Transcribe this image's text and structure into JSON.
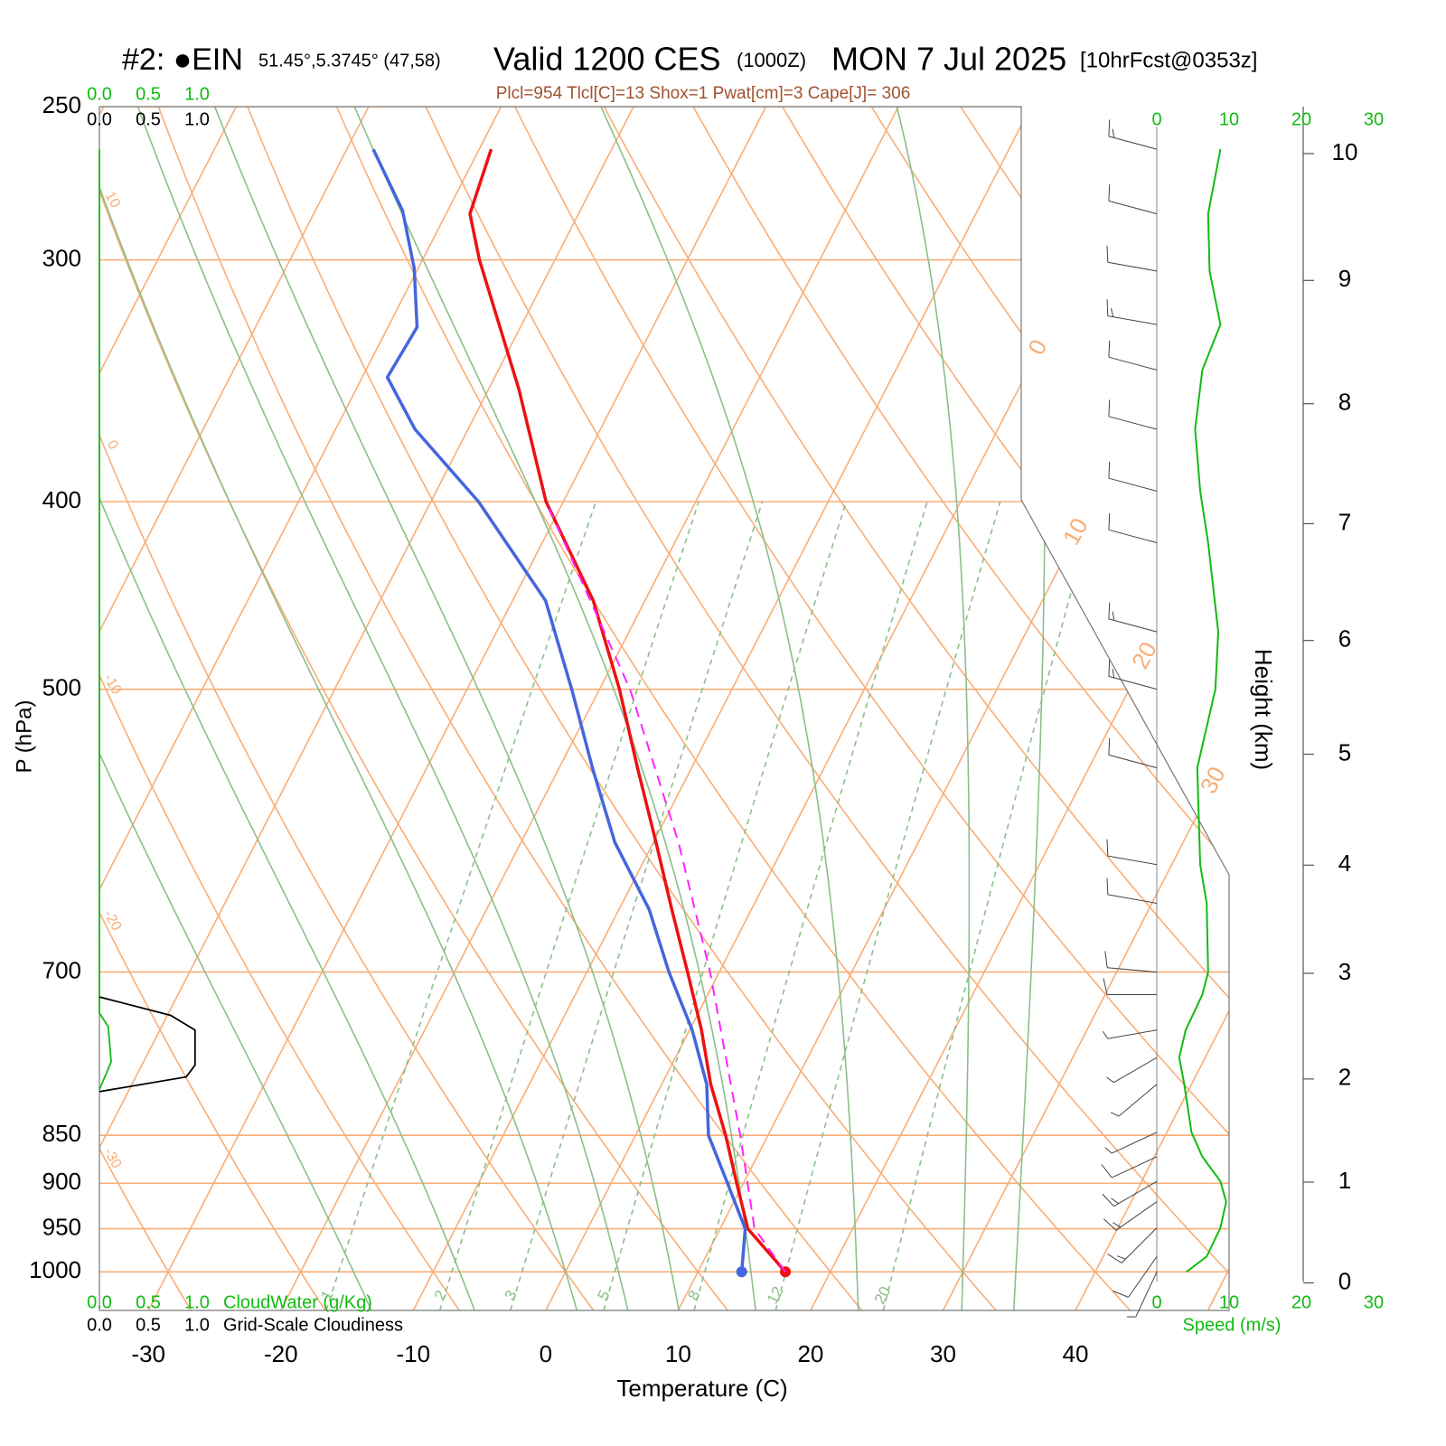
{
  "chart_data": {
    "type": "skewt",
    "title": {
      "station": "#2: ●EIN",
      "location": "51.45°,5.3745° (47,58)",
      "valid": "Valid 1200 CES",
      "utc": "(1000Z)",
      "date": "MON 7 Jul 2025",
      "forecast": "[10hrFcst@0353z]"
    },
    "subtitle": "Plcl=954 Tlcl[C]=13 Shox=1 Pwat[cm]=3 Cape[J]= 306",
    "xlabel": "Temperature (C)",
    "ylabel": "P (hPa)",
    "y2label": "Height (km)",
    "xlim": [
      -33.7,
      51.6
    ],
    "xticks": [
      -30,
      -20,
      -10,
      0,
      10,
      20,
      30,
      40
    ],
    "ylim": [
      1047,
      250
    ],
    "yticks": [
      250,
      300,
      400,
      500,
      700,
      850,
      900,
      950,
      1000
    ],
    "log_y": true,
    "y2ticks": [
      0,
      1,
      2,
      3,
      4,
      5,
      6,
      7,
      8,
      9,
      10
    ],
    "series": [
      {
        "color": "#ee1111",
        "dash": false,
        "marker": true,
        "pressure": [
          1000,
          950,
          900,
          850,
          800,
          750,
          700,
          650,
          600,
          550,
          500,
          450,
          400,
          350,
          300,
          284,
          263
        ],
        "values": [
          16.6,
          12.1,
          9.5,
          6.8,
          3.7,
          0.9,
          -2.4,
          -6.0,
          -9.8,
          -14.0,
          -18.5,
          -23.9,
          -31.3,
          -37.7,
          -45.7,
          -48.2,
          -49.1
        ]
      },
      {
        "color": "#4466dd",
        "dash": false,
        "marker": true,
        "pressure": [
          1000,
          950,
          900,
          850,
          800,
          750,
          700,
          650,
          600,
          550,
          500,
          450,
          400,
          367,
          345,
          325,
          303,
          283,
          263
        ],
        "values": [
          13.3,
          11.9,
          8.8,
          5.5,
          3.4,
          0.2,
          -3.8,
          -7.7,
          -12.9,
          -17.4,
          -22.1,
          -27.5,
          -36.4,
          -44.0,
          -48.1,
          -47.8,
          -50.3,
          -53.4,
          -58.0
        ]
      },
      {
        "color": "#ff22ff",
        "dash": true,
        "marker": false,
        "pressure": [
          1000,
          950,
          850,
          700,
          600,
          500,
          400
        ],
        "values": [
          16.6,
          12.6,
          7.9,
          -0.7,
          -8.1,
          -17.7,
          -31.3
        ]
      }
    ],
    "isotherms": {
      "color": "#f7ae78",
      "values": [
        -80,
        -70,
        -60,
        -50,
        -40,
        -30,
        -20,
        -10,
        0,
        10,
        20,
        30,
        40,
        50
      ],
      "labels": [
        0,
        10,
        20,
        30
      ]
    },
    "dry_adiabats": {
      "color": "#f7ae78",
      "values": [
        -40,
        -30,
        -20,
        -10,
        0,
        10,
        20,
        30,
        40,
        50,
        60,
        70,
        80,
        90,
        100,
        110,
        120
      ],
      "labels": [
        10,
        0,
        -10,
        -20,
        -30
      ]
    },
    "moist_adiabats": {
      "color": "#8cbf88",
      "values": [
        -16,
        -8,
        0,
        4,
        8,
        14,
        22,
        30,
        34
      ]
    },
    "mixing_ratios": {
      "color": "#8cbf88",
      "values": [
        1,
        2,
        3,
        5,
        8,
        12,
        20
      ],
      "top": 400
    },
    "wind": {
      "color": "#11bb11",
      "barb_color": "#444444",
      "pressure": [
        1000,
        982,
        949,
        920,
        898,
        872,
        847,
        800,
        775,
        750,
        719,
        700,
        645,
        616,
        549,
        500,
        467,
        420,
        395,
        367,
        342,
        324,
        304,
        284,
        263
      ],
      "speed": [
        4.1,
        6.9,
        8.8,
        9.6,
        8.8,
        6.3,
        4.8,
        3.8,
        3.1,
        4.0,
        6.3,
        7.1,
        6.9,
        6.0,
        5.6,
        8.1,
        8.5,
        7.1,
        6.0,
        5.3,
        6.3,
        8.8,
        7.3,
        7.1,
        8.8
      ],
      "direction": [
        205,
        215,
        225,
        235,
        240,
        245,
        245,
        230,
        240,
        260,
        270,
        275,
        280,
        280,
        285,
        285,
        285,
        285,
        285,
        285,
        285,
        280,
        280,
        285,
        285
      ],
      "xlim": [
        0,
        30
      ],
      "xticks": [
        0,
        10,
        20,
        30
      ],
      "xlabel": "Speed (m/s)"
    },
    "cloudwater": {
      "color": "#11bb11",
      "label": "CloudWater (g/Kg)",
      "pressure": [
        263,
        735,
        747,
        779,
        805
      ],
      "values": [
        0,
        0,
        0.09,
        0.12,
        0
      ],
      "xlim": [
        0,
        1
      ],
      "xticks": [
        {
          "value": 0,
          "label": "0.0"
        },
        {
          "value": 0.5,
          "label": "0.5"
        },
        {
          "value": 1,
          "label": "1.0"
        }
      ]
    },
    "cloudiness": {
      "color": "#000000",
      "label": "Grid-Scale Cloudiness",
      "pressure": [
        721,
        737,
        750,
        782,
        793,
        807
      ],
      "values": [
        0,
        0.73,
        0.98,
        0.98,
        0.89,
        0
      ],
      "xlim": [
        0,
        1
      ],
      "xticks": [
        {
          "value": 0,
          "label": "0.0"
        },
        {
          "value": 0.5,
          "label": "0.5"
        },
        {
          "value": 1,
          "label": "1.0"
        }
      ]
    }
  }
}
